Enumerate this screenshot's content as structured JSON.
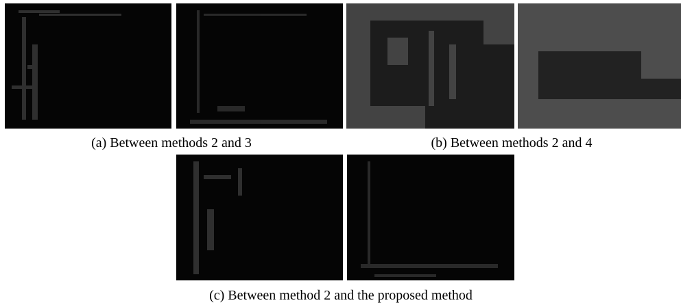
{
  "figure": {
    "captions": [
      "(a) Between methods 2 and 3",
      "(b) Between methods 2 and 4",
      "(c) Between method 2 and the proposed method"
    ]
  }
}
